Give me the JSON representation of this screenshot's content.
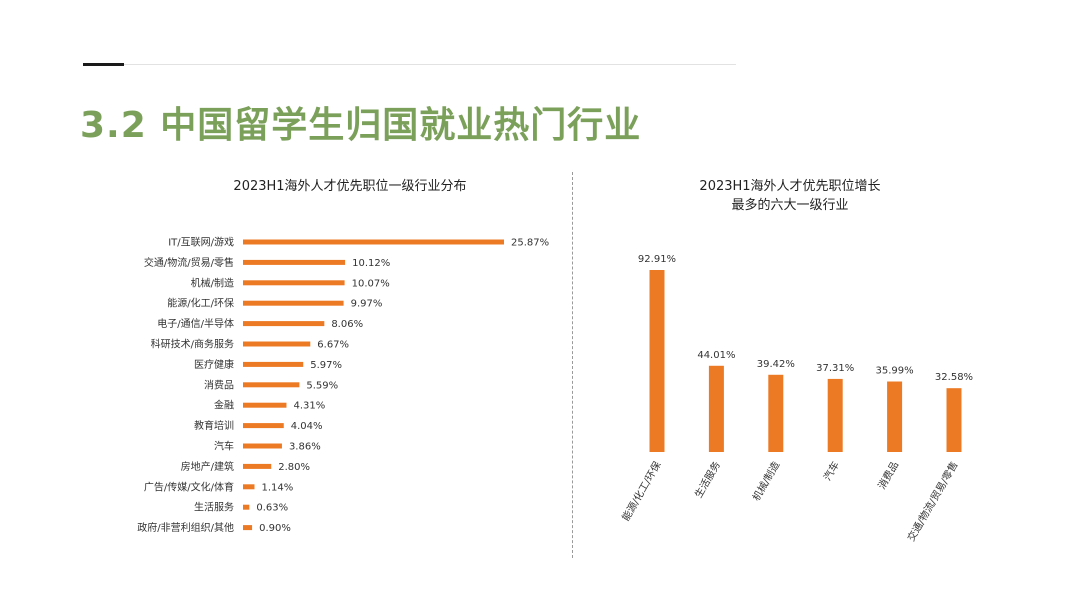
{
  "page": {
    "title": "3.2  中国留学生归国就业热门行业"
  },
  "colors": {
    "title": "#7aa05a",
    "bar": "#ec7a25"
  },
  "chart_data": [
    {
      "type": "bar",
      "orientation": "horizontal",
      "title": "2023H1海外人才优先职位一级行业分布",
      "categories": [
        "IT/互联网/游戏",
        "交通/物流/贸易/零售",
        "机械/制造",
        "能源/化工/环保",
        "电子/通信/半导体",
        "科研技术/商务服务",
        "医疗健康",
        "消费品",
        "金融",
        "教育培训",
        "汽车",
        "房地产/建筑",
        "广告/传媒/文化/体育",
        "生活服务",
        "政府/非营利组织/其他"
      ],
      "values": [
        25.87,
        10.12,
        10.07,
        9.97,
        8.06,
        6.67,
        5.97,
        5.59,
        4.31,
        4.04,
        3.86,
        2.8,
        1.14,
        0.63,
        0.9
      ],
      "value_labels": [
        "25.87%",
        "10.12%",
        "10.07%",
        "9.97%",
        "8.06%",
        "6.67%",
        "5.97%",
        "5.59%",
        "4.31%",
        "4.04%",
        "3.86%",
        "2.80%",
        "1.14%",
        "0.63%",
        "0.90%"
      ],
      "unit": "%",
      "xlim": [
        0,
        25.87
      ],
      "grid": false,
      "legend": "none"
    },
    {
      "type": "bar",
      "orientation": "vertical",
      "title_lines": [
        "2023H1海外人才优先职位增长",
        "最多的六大一级行业"
      ],
      "categories": [
        "能源/化工/环保",
        "生活服务",
        "机械/制造",
        "汽车",
        "消费品",
        "交通/物流/贸易/零售"
      ],
      "values": [
        92.91,
        44.01,
        39.42,
        37.31,
        35.99,
        32.58
      ],
      "value_labels": [
        "92.91%",
        "44.01%",
        "39.42%",
        "37.31%",
        "35.99%",
        "32.58%"
      ],
      "unit": "%",
      "ylim": [
        0,
        92.91
      ],
      "grid": false,
      "legend": "none"
    }
  ]
}
